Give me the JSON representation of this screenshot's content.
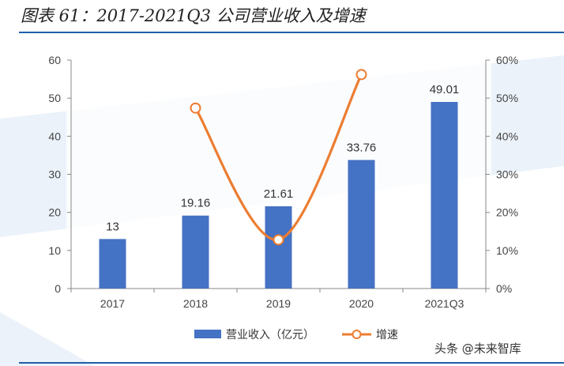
{
  "header": {
    "title": "图表 61：2017-2021Q3 公司营业收入及增速"
  },
  "watermark": "头条 @未来智库",
  "colors": {
    "bar": "#4472c4",
    "line": "#ed7d31",
    "rule": "#1f5fa8",
    "band": "#dbe8f5"
  },
  "chart_data": {
    "type": "bar",
    "categories": [
      "2017",
      "2018",
      "2019",
      "2020",
      "2021Q3"
    ],
    "series": [
      {
        "name": "营业收入（亿元）",
        "type": "bar",
        "axis": "left",
        "values": [
          13,
          19.16,
          21.61,
          33.76,
          49.01
        ],
        "labels": [
          "13",
          "19.16",
          "21.61",
          "33.76",
          "49.01"
        ]
      },
      {
        "name": "增速",
        "type": "line",
        "axis": "right",
        "values": [
          null,
          0.474,
          0.128,
          0.562,
          null
        ]
      }
    ],
    "y_left": {
      "min": 0,
      "max": 60,
      "ticks": [
        0,
        10,
        20,
        30,
        40,
        50,
        60
      ],
      "tick_labels": [
        "0",
        "10",
        "20",
        "30",
        "40",
        "50",
        "60"
      ]
    },
    "y_right": {
      "min": 0,
      "max": 0.6,
      "ticks": [
        0,
        0.1,
        0.2,
        0.3,
        0.4,
        0.5,
        0.6
      ],
      "tick_labels": [
        "0%",
        "10%",
        "20%",
        "30%",
        "40%",
        "50%",
        "60%"
      ]
    },
    "grid": false,
    "legend_position": "bottom"
  }
}
